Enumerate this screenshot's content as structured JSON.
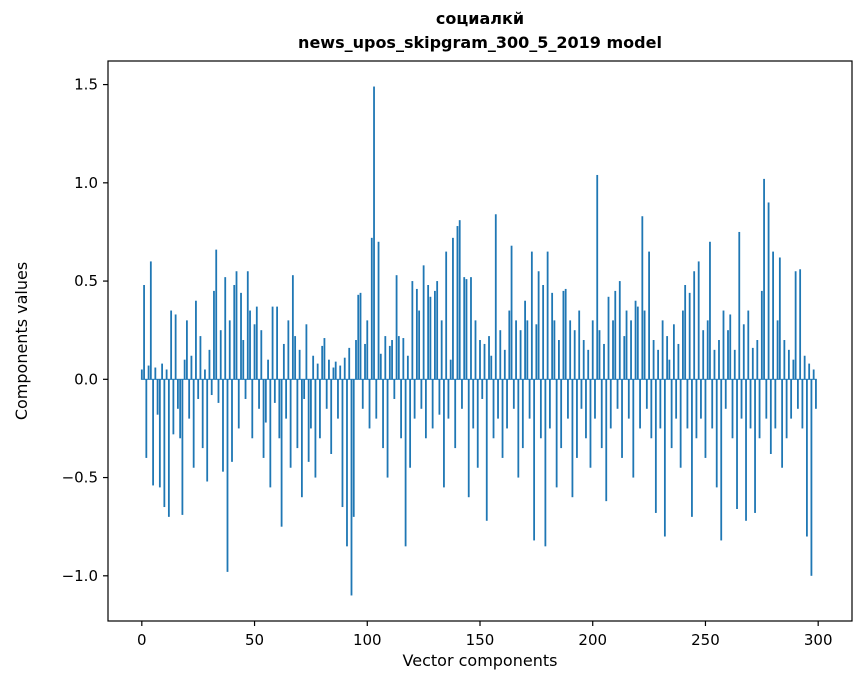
{
  "chart_data": {
    "type": "bar",
    "title": "социалкй",
    "subtitle": "news_upos_skipgram_300_5_2019 model",
    "xlabel": "Vector components",
    "ylabel": "Components values",
    "xlim": [
      -15,
      315
    ],
    "ylim": [
      -1.23,
      1.62
    ],
    "xticks": [
      0,
      50,
      100,
      150,
      200,
      250,
      300
    ],
    "yticks": [
      -1.0,
      -0.5,
      0.0,
      0.5,
      1.0,
      1.5
    ],
    "bar_color": "#1f77b4",
    "legend": "none",
    "grid": false,
    "values": [
      0.05,
      0.48,
      -0.4,
      0.07,
      0.6,
      -0.54,
      0.06,
      -0.18,
      -0.55,
      0.08,
      -0.65,
      0.05,
      -0.7,
      0.35,
      -0.28,
      0.33,
      -0.15,
      -0.3,
      -0.69,
      0.1,
      0.3,
      -0.2,
      0.12,
      -0.45,
      0.4,
      -0.1,
      0.22,
      -0.35,
      0.05,
      -0.52,
      0.15,
      -0.08,
      0.45,
      0.66,
      -0.12,
      0.25,
      -0.47,
      0.52,
      -0.98,
      0.3,
      -0.42,
      0.48,
      0.55,
      -0.25,
      0.44,
      0.2,
      -0.1,
      0.55,
      0.35,
      -0.3,
      0.28,
      0.37,
      -0.15,
      0.25,
      -0.4,
      -0.22,
      0.1,
      -0.55,
      0.37,
      -0.12,
      0.37,
      -0.3,
      -0.75,
      0.18,
      -0.2,
      0.3,
      -0.45,
      0.53,
      0.22,
      -0.35,
      0.15,
      -0.6,
      -0.1,
      0.28,
      -0.42,
      -0.25,
      0.12,
      -0.5,
      0.08,
      -0.3,
      0.17,
      0.21,
      -0.15,
      0.1,
      -0.38,
      0.06,
      0.09,
      -0.2,
      0.07,
      -0.65,
      0.11,
      -0.85,
      0.16,
      -1.1,
      -0.7,
      0.2,
      0.43,
      0.44,
      -0.15,
      0.18,
      0.3,
      -0.25,
      0.72,
      1.49,
      -0.2,
      0.7,
      0.13,
      -0.35,
      0.22,
      -0.5,
      0.17,
      0.2,
      -0.1,
      0.53,
      0.22,
      -0.3,
      0.21,
      -0.85,
      0.12,
      -0.45,
      0.5,
      -0.2,
      0.46,
      0.35,
      -0.15,
      0.58,
      -0.3,
      0.48,
      0.42,
      -0.25,
      0.45,
      0.5,
      -0.18,
      0.3,
      -0.55,
      0.65,
      -0.2,
      0.1,
      0.72,
      -0.35,
      0.78,
      0.81,
      -0.15,
      0.52,
      0.51,
      -0.6,
      0.52,
      -0.25,
      0.3,
      -0.45,
      0.2,
      -0.1,
      0.18,
      -0.72,
      0.22,
      0.12,
      -0.3,
      0.84,
      -0.2,
      0.25,
      -0.4,
      0.15,
      -0.25,
      0.35,
      0.68,
      -0.15,
      0.3,
      -0.5,
      0.25,
      -0.35,
      0.4,
      0.3,
      -0.2,
      0.65,
      -0.82,
      0.28,
      0.55,
      -0.3,
      0.48,
      -0.85,
      0.65,
      -0.25,
      0.44,
      0.3,
      -0.55,
      0.2,
      -0.35,
      0.45,
      0.46,
      -0.2,
      0.3,
      -0.6,
      0.25,
      -0.4,
      0.35,
      -0.15,
      0.2,
      -0.3,
      0.15,
      -0.45,
      0.3,
      -0.2,
      1.04,
      0.25,
      -0.35,
      0.18,
      -0.62,
      0.42,
      -0.25,
      0.3,
      0.45,
      -0.15,
      0.5,
      -0.4,
      0.22,
      0.35,
      -0.2,
      0.3,
      -0.5,
      0.4,
      0.37,
      -0.25,
      0.83,
      0.35,
      -0.15,
      0.65,
      -0.3,
      0.2,
      -0.68,
      0.15,
      -0.25,
      0.3,
      -0.8,
      0.22,
      0.1,
      -0.35,
      0.28,
      -0.2,
      0.18,
      -0.45,
      0.35,
      0.48,
      -0.25,
      0.44,
      -0.7,
      0.55,
      -0.3,
      0.6,
      -0.2,
      0.25,
      -0.4,
      0.3,
      0.7,
      -0.25,
      0.15,
      -0.55,
      0.2,
      -0.82,
      0.35,
      -0.15,
      0.25,
      0.33,
      -0.3,
      0.15,
      -0.66,
      0.75,
      -0.2,
      0.28,
      -0.72,
      0.35,
      -0.25,
      0.16,
      -0.68,
      0.2,
      -0.3,
      0.45,
      1.02,
      -0.2,
      0.9,
      -0.38,
      0.65,
      -0.25,
      0.3,
      0.62,
      -0.45,
      0.2,
      -0.3,
      0.15,
      -0.2,
      0.1,
      0.55,
      -0.15,
      0.56,
      -0.25,
      0.12,
      -0.8,
      0.08,
      -1.0,
      0.05,
      -0.15
    ]
  }
}
